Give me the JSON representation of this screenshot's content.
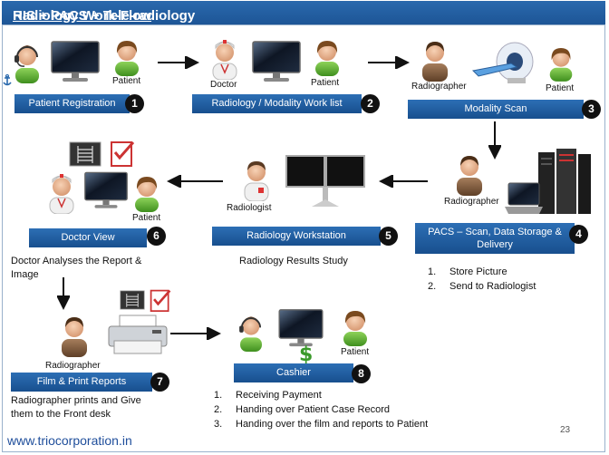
{
  "title": {
    "underlined": "Radiology Work-Flow",
    "rest": " HIS + PACS + Tele-radiology"
  },
  "labels": {
    "patient1": "Patient",
    "doctor2": "Doctor",
    "patient2": "Patient",
    "radiographer3": "Radiographer",
    "patient3": "Patient",
    "radiographer4": "Radiographer",
    "radiologist5": "Radiologist",
    "patient6": "Patient",
    "radiographer7": "Radiographer",
    "patient8": "Patient"
  },
  "steps": [
    {
      "label": "Patient Registration",
      "number": "1"
    },
    {
      "label": "Radiology / Modality Work list",
      "number": "2"
    },
    {
      "label": "Modality Scan",
      "number": "3"
    },
    {
      "label": "PACS – Scan, Data Storage & Delivery",
      "number": "4"
    },
    {
      "label": "Radiology   Workstation",
      "number": "5"
    },
    {
      "label": "Doctor View",
      "number": "6"
    },
    {
      "label": "Film & Print Reports",
      "number": "7"
    },
    {
      "label": "Cashier",
      "number": "8"
    }
  ],
  "notes": {
    "doctor_view": "Doctor Analyses the Report & Image",
    "workstation": "Radiology Results Study",
    "film_print": "Radiographer prints and Give them to the Front desk"
  },
  "pacs_list": [
    "Store Picture",
    "Send to Radiologist"
  ],
  "cashier_list": [
    "Receiving Payment",
    "Handing over Patient Case Record",
    "Handing over the film and reports to Patient"
  ],
  "footer": {
    "url": "www.triocorporation.in",
    "page_number": "23"
  },
  "colors": {
    "step_fill": "#2065ad",
    "title_fill": "#2a69ad",
    "url": "#1f4e9b"
  }
}
